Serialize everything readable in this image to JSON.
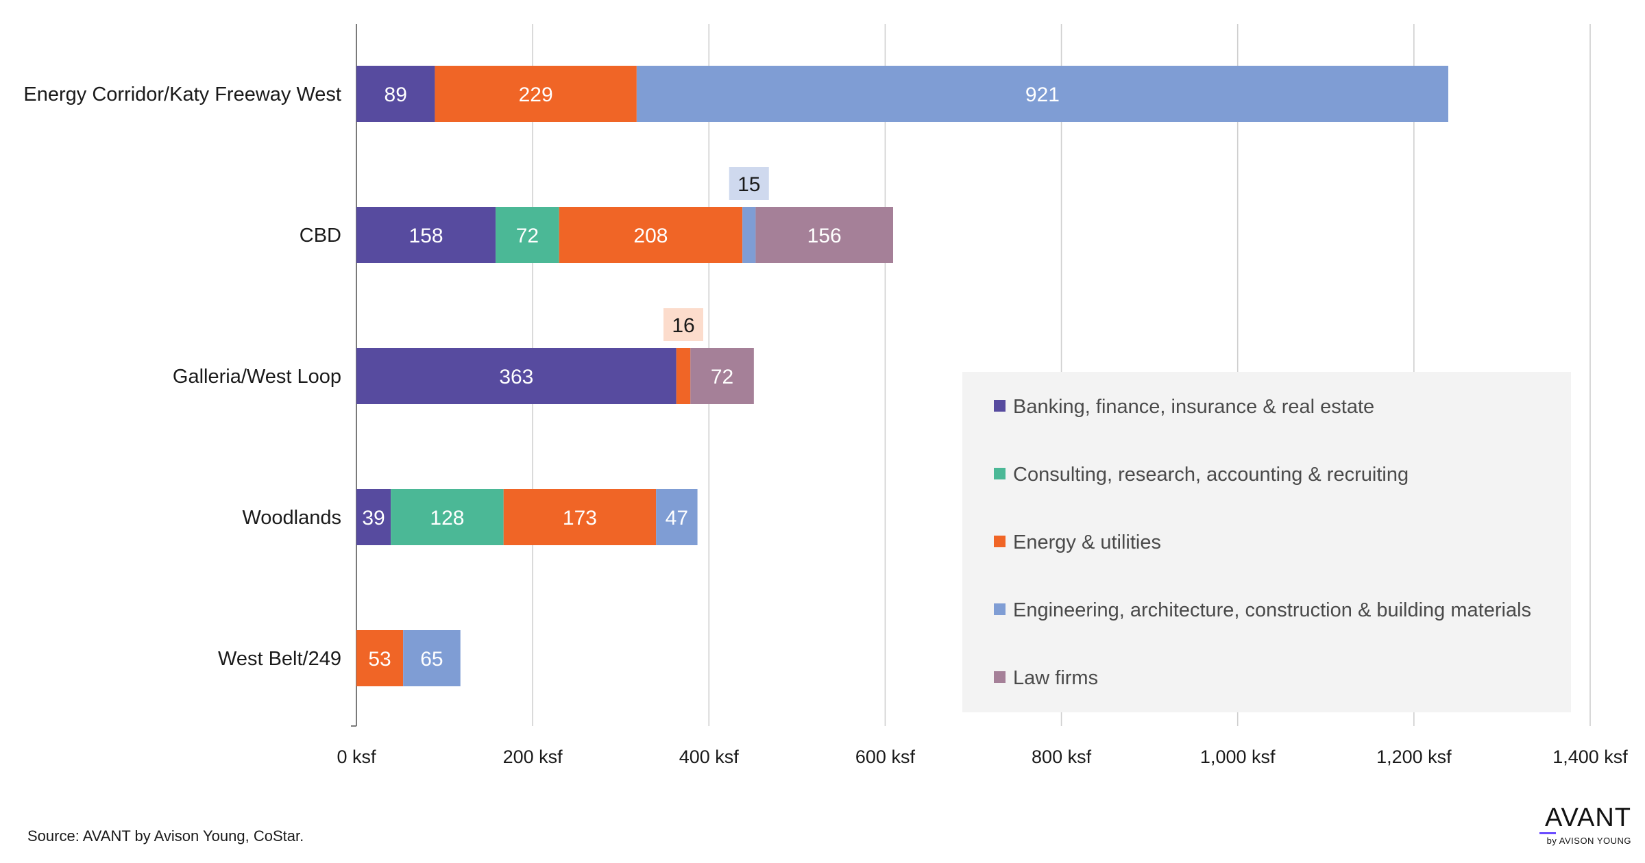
{
  "chart_data": {
    "type": "bar",
    "orientation": "horizontal",
    "stacked": true,
    "categories": [
      "Energy Corridor/Katy Freeway West",
      "CBD",
      "Galleria/West Loop",
      "Woodlands",
      "West Belt/249"
    ],
    "series": [
      {
        "name": "Banking, finance, insurance & real estate",
        "color": "#574b9f",
        "values": [
          89,
          158,
          363,
          39,
          0
        ]
      },
      {
        "name": "Consulting, research, accounting & recruiting",
        "color": "#4bb896",
        "values": [
          0,
          72,
          0,
          128,
          0
        ]
      },
      {
        "name": "Energy & utilities",
        "color": "#f06526",
        "values": [
          229,
          208,
          16,
          173,
          53
        ]
      },
      {
        "name": "Engineering, architecture, construction & building materials",
        "color": "#7f9dd4",
        "values": [
          921,
          15,
          0,
          47,
          65
        ]
      },
      {
        "name": "Law firms",
        "color": "#a58098",
        "values": [
          0,
          156,
          72,
          0,
          0
        ]
      }
    ],
    "callouts": [
      {
        "category": "CBD",
        "series": "Engineering, architecture, construction & building materials",
        "value": 15,
        "bg": "#cfd9ee"
      },
      {
        "category": "Galleria/West Loop",
        "series": "Energy & utilities",
        "value": 16,
        "bg": "#fcdccc"
      }
    ],
    "xlim": [
      0,
      1400
    ],
    "xticks": [
      0,
      200,
      400,
      600,
      800,
      1000,
      1200,
      1400
    ],
    "xtick_labels": [
      "0 ksf",
      "200 ksf",
      "400 ksf",
      "600 ksf",
      "800 ksf",
      "1,000 ksf",
      "1,200 ksf",
      "1,400 ksf"
    ],
    "grid": true,
    "legend_position": "lower-right inside plot"
  },
  "source": "Source: AVANT by Avison Young, CoStar.",
  "logo": {
    "word": "AVANT",
    "sub": "by AVISON YOUNG",
    "accent": "#6a4cff"
  }
}
